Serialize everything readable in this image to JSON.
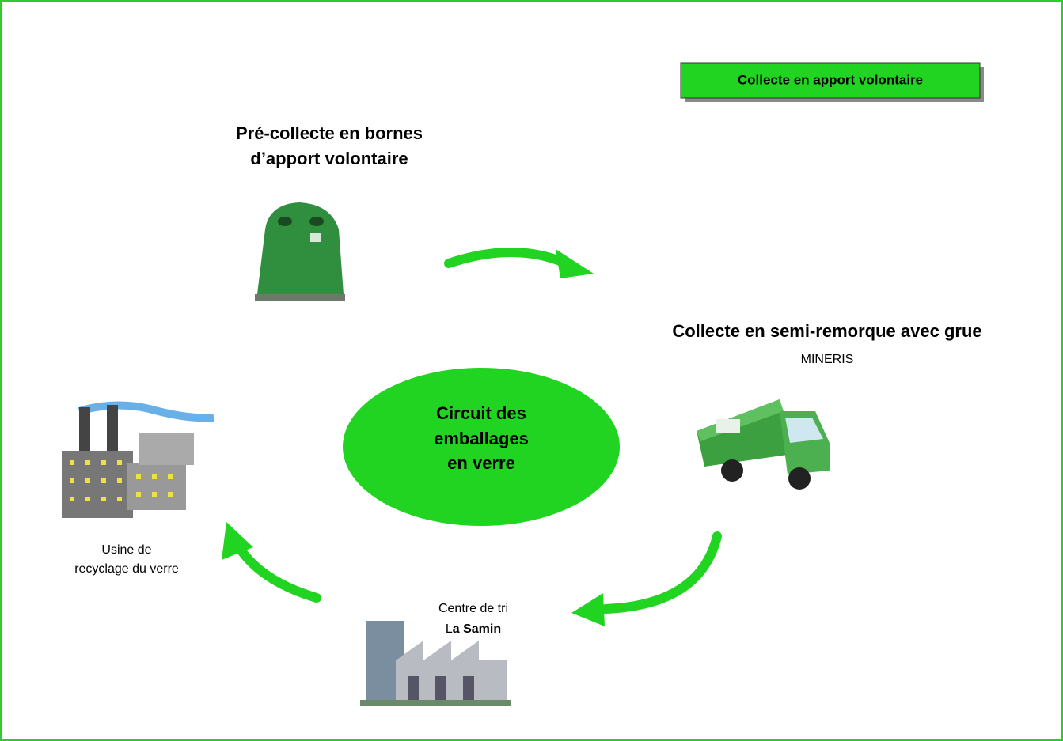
{
  "badge": "Collecte en apport volontaire",
  "center": {
    "lines": [
      "Circuit des",
      "emballages",
      "en verre"
    ]
  },
  "steps": [
    {
      "title": [
        "Pré-collecte en bornes",
        "d’apport volontaire"
      ]
    },
    {
      "title": [
        "Collecte en semi-remorque avec grue"
      ],
      "subtitle": "MINERIS"
    },
    {
      "title": [
        "Centre de tri"
      ],
      "subtitle_parts": [
        "L",
        "a Samin"
      ]
    },
    {
      "title": [
        "Usine de",
        "recyclage du verre"
      ]
    }
  ]
}
